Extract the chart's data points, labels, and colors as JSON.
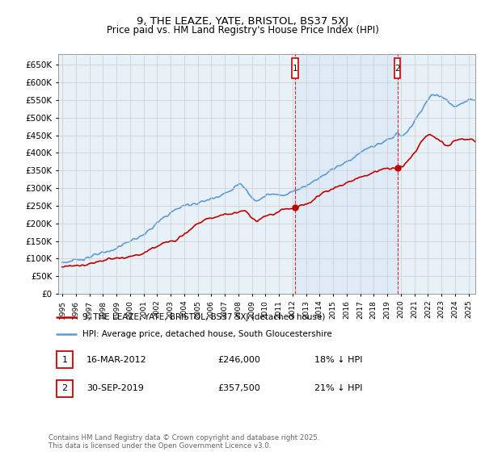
{
  "title": "9, THE LEAZE, YATE, BRISTOL, BS37 5XJ",
  "subtitle": "Price paid vs. HM Land Registry's House Price Index (HPI)",
  "ylabel_ticks": [
    0,
    50000,
    100000,
    150000,
    200000,
    250000,
    300000,
    350000,
    400000,
    450000,
    500000,
    550000,
    600000,
    650000
  ],
  "ylim": [
    0,
    680000
  ],
  "xlim_start": 1994.7,
  "xlim_end": 2025.5,
  "hpi_color": "#5b9bd5",
  "price_color": "#c00000",
  "grid_color": "#cccccc",
  "background_color": "#e8f0f8",
  "sale1_x": 2012.2,
  "sale1_y": 246000,
  "sale1_label": "1",
  "sale2_x": 2019.75,
  "sale2_y": 357500,
  "sale2_label": "2",
  "legend_line1": "9, THE LEAZE, YATE, BRISTOL, BS37 5XJ (detached house)",
  "legend_line2": "HPI: Average price, detached house, South Gloucestershire",
  "note1_date": "16-MAR-2012",
  "note1_price": "£246,000",
  "note1_pct": "18% ↓ HPI",
  "note2_date": "30-SEP-2019",
  "note2_price": "£357,500",
  "note2_pct": "21% ↓ HPI",
  "footer": "Contains HM Land Registry data © Crown copyright and database right 2025.\nThis data is licensed under the Open Government Licence v3.0."
}
